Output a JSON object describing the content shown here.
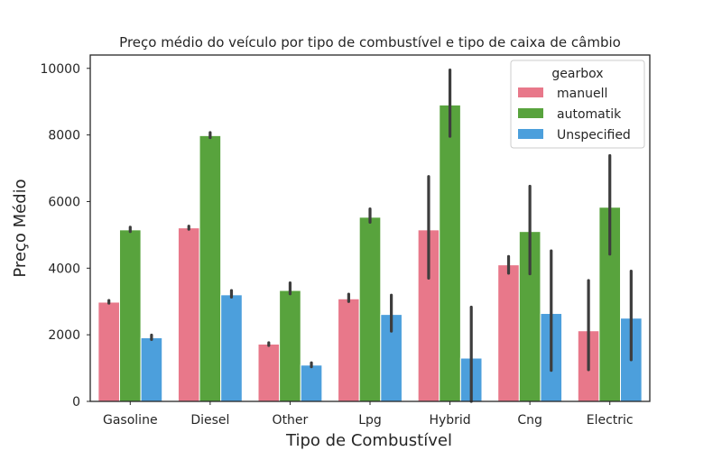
{
  "chart_data": {
    "type": "bar",
    "title": "Preço médio do veículo por tipo de combustível e tipo de caixa de câmbio",
    "xlabel": "Tipo de Combustível",
    "ylabel": "Preço Médio",
    "categories": [
      "Gasoline",
      "Diesel",
      "Other",
      "Lpg",
      "Hybrid",
      "Cng",
      "Electric"
    ],
    "ylim": [
      0,
      10400
    ],
    "yticks": [
      0,
      2000,
      4000,
      6000,
      8000,
      10000
    ],
    "grid": false,
    "legend": {
      "title": "gearbox",
      "placement": "top-right"
    },
    "series": [
      {
        "name": "manuell",
        "color": "#e8788a",
        "values": [
          2980,
          5210,
          1720,
          3080,
          5150,
          4100,
          2120
        ],
        "error_low": [
          2950,
          5170,
          1680,
          3000,
          3700,
          3850,
          950
        ],
        "error_high": [
          3030,
          5260,
          1760,
          3220,
          6750,
          4350,
          3630
        ]
      },
      {
        "name": "automatik",
        "color": "#58a33d",
        "values": [
          5150,
          7980,
          3330,
          5530,
          8900,
          5100,
          5830
        ],
        "error_low": [
          5100,
          7920,
          3230,
          5380,
          7960,
          3830,
          4420
        ],
        "error_high": [
          5230,
          8070,
          3560,
          5780,
          9950,
          6460,
          7380
        ]
      },
      {
        "name": "Unspecified",
        "color": "#4c9fdc",
        "values": [
          1910,
          3200,
          1090,
          2610,
          1300,
          2640,
          2500
        ],
        "error_low": [
          1860,
          3130,
          1040,
          2110,
          0,
          930,
          1250
        ],
        "error_high": [
          1990,
          3330,
          1160,
          3190,
          2830,
          4520,
          3910
        ]
      }
    ]
  }
}
